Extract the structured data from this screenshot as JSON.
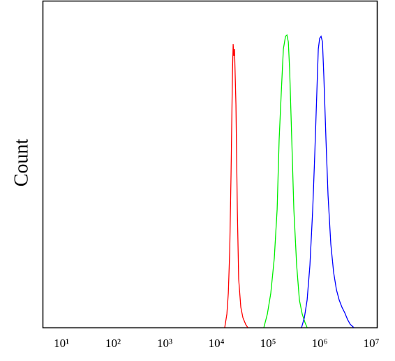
{
  "chart_data": {
    "type": "line",
    "y_label": "Count",
    "xscale": "log",
    "xlim": [
      4.3,
      12800000
    ],
    "ylim": [
      0,
      100
    ],
    "xticks": [
      {
        "value": 10,
        "label": "10¹"
      },
      {
        "value": 100,
        "label": "10²"
      },
      {
        "value": 1000,
        "label": "10³"
      },
      {
        "value": 10000,
        "label": "10⁴"
      },
      {
        "value": 100000,
        "label": "10⁵"
      },
      {
        "value": 1000000,
        "label": "10⁶"
      },
      {
        "value": 10000000,
        "label": "10⁷"
      }
    ],
    "series": [
      {
        "color": "#ff0000",
        "x": [
          14500,
          15950,
          17000,
          18100,
          19200,
          20500,
          21100,
          21800,
          22400,
          23900,
          25400,
          27000,
          29700,
          32600,
          37000,
          40500
        ],
        "values": [
          0,
          4.1,
          10.5,
          23.3,
          46.9,
          79,
          86.9,
          83.3,
          85.4,
          68.3,
          36.2,
          14.8,
          6.2,
          3.0,
          0.9,
          0
        ]
      },
      {
        "color": "#00ee00",
        "x": [
          83000,
          96900,
          113000,
          132000,
          150000,
          164000,
          181000,
          198000,
          218000,
          232000,
          247000,
          262000,
          288000,
          316000,
          358000,
          405000,
          459000,
          520000,
          571000
        ],
        "values": [
          0,
          4.1,
          10.5,
          21.2,
          36.2,
          57.6,
          72.6,
          85.4,
          89.3,
          89.7,
          87.6,
          79,
          57.6,
          36.2,
          19.1,
          8.4,
          4.1,
          1.5,
          0
        ]
      },
      {
        "color": "#0000ff",
        "x": [
          446000,
          505000,
          571000,
          647000,
          733000,
          804000,
          883000,
          940000,
          1000000,
          1064000,
          1132000,
          1205000,
          1324000,
          1452000,
          1644000,
          1862000,
          2109000,
          2388000,
          2704000,
          3062000,
          3475000,
          3936000,
          4592000
        ],
        "values": [
          0,
          3.0,
          8.4,
          19.1,
          36.2,
          53.3,
          72.6,
          85.4,
          88.7,
          89.3,
          87.6,
          76.9,
          57.6,
          40.5,
          25.5,
          16.9,
          11.6,
          8.4,
          6.2,
          4.5,
          2.4,
          0.9,
          0
        ]
      }
    ]
  }
}
